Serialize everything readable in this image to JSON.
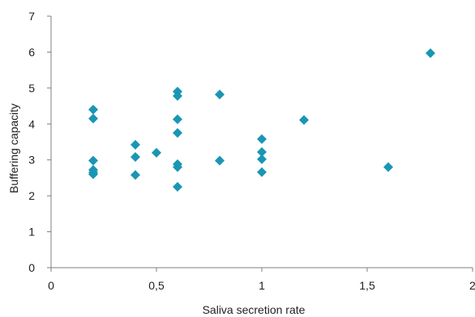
{
  "chart_data": {
    "type": "scatter",
    "title": "",
    "xlabel": "Saliva secretion rate",
    "ylabel": "Buffering capacity",
    "xlim": [
      0,
      2
    ],
    "ylim": [
      0,
      7
    ],
    "x_ticks": [
      "0",
      "0,5",
      "1",
      "1,5",
      "2"
    ],
    "y_ticks": [
      "0",
      "1",
      "2",
      "3",
      "4",
      "5",
      "6",
      "7"
    ],
    "grid": false,
    "legend": "none",
    "marker": "diamond",
    "color": "#1a96b4",
    "series": [
      {
        "points": [
          {
            "x": 0.2,
            "y": 4.4
          },
          {
            "x": 0.2,
            "y": 4.15
          },
          {
            "x": 0.2,
            "y": 2.98
          },
          {
            "x": 0.2,
            "y": 2.72
          },
          {
            "x": 0.2,
            "y": 2.65
          },
          {
            "x": 0.2,
            "y": 2.6
          },
          {
            "x": 0.4,
            "y": 3.42
          },
          {
            "x": 0.4,
            "y": 3.08
          },
          {
            "x": 0.4,
            "y": 2.58
          },
          {
            "x": 0.5,
            "y": 3.2
          },
          {
            "x": 0.6,
            "y": 4.9
          },
          {
            "x": 0.6,
            "y": 4.78
          },
          {
            "x": 0.6,
            "y": 4.13
          },
          {
            "x": 0.6,
            "y": 3.75
          },
          {
            "x": 0.6,
            "y": 2.88
          },
          {
            "x": 0.6,
            "y": 2.8
          },
          {
            "x": 0.6,
            "y": 2.25
          },
          {
            "x": 0.8,
            "y": 4.82
          },
          {
            "x": 0.8,
            "y": 2.98
          },
          {
            "x": 1.0,
            "y": 3.58
          },
          {
            "x": 1.0,
            "y": 3.22
          },
          {
            "x": 1.0,
            "y": 3.02
          },
          {
            "x": 1.0,
            "y": 2.66
          },
          {
            "x": 1.2,
            "y": 4.11
          },
          {
            "x": 1.6,
            "y": 2.8
          },
          {
            "x": 1.8,
            "y": 5.97
          }
        ]
      }
    ]
  }
}
